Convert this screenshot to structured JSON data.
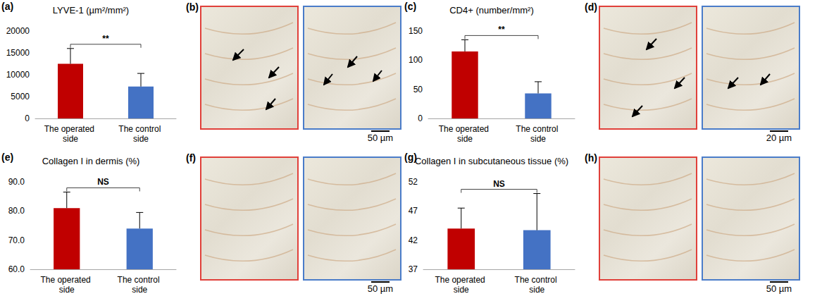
{
  "chart_data": [
    {
      "panel": "(a)",
      "type": "bar",
      "title": "LYVE-1 (µm²/mm²)",
      "categories": [
        "The operated side",
        "The control side"
      ],
      "values": [
        12500,
        7300
      ],
      "errors": [
        3500,
        3000
      ],
      "colors": [
        "#c00000",
        "#4472c4"
      ],
      "ylim": [
        0,
        20000
      ],
      "yticks": [
        0,
        5000,
        10000,
        15000,
        20000
      ],
      "grid": false,
      "annotation": "**"
    },
    {
      "panel": "(c)",
      "type": "bar",
      "title": "CD4+ (number/mm²)",
      "categories": [
        "The operated side",
        "The control side"
      ],
      "values": [
        115,
        43
      ],
      "errors": [
        20,
        20
      ],
      "colors": [
        "#c00000",
        "#4472c4"
      ],
      "ylim": [
        0,
        150
      ],
      "yticks": [
        0,
        50,
        100,
        150
      ],
      "grid": false,
      "annotation": "**"
    },
    {
      "panel": "(e)",
      "type": "bar",
      "title": "Collagen I in dermis (%)",
      "categories": [
        "The operated side",
        "The control side"
      ],
      "values": [
        81,
        74
      ],
      "errors": [
        5.5,
        5.5
      ],
      "colors": [
        "#c00000",
        "#4472c4"
      ],
      "ylim": [
        60,
        90
      ],
      "yticks": [
        {
          "value": 60,
          "label": "60.0"
        },
        {
          "value": 70,
          "label": "70.0"
        },
        {
          "value": 80,
          "label": "80.0"
        },
        {
          "value": 90,
          "label": "90.0"
        }
      ],
      "grid": false,
      "annotation": "NS"
    },
    {
      "panel": "(g)",
      "type": "bar",
      "title": "Collagen I in subcutaneous tissue (%)",
      "categories": [
        "The operated side",
        "The control side"
      ],
      "values": [
        44,
        43.7
      ],
      "errors": [
        3.5,
        6.3
      ],
      "colors": [
        "#c00000",
        "#4472c4"
      ],
      "ylim": [
        37,
        52
      ],
      "yticks": [
        37,
        42,
        47,
        52
      ],
      "grid": false,
      "annotation": "NS"
    }
  ],
  "image_panels": [
    {
      "panel": "(b)",
      "scale_bar": "50 µm",
      "frame_colors": [
        "#e0403a",
        "#4a7cc9"
      ]
    },
    {
      "panel": "(d)",
      "scale_bar": "20 µm",
      "frame_colors": [
        "#e0403a",
        "#4a7cc9"
      ]
    },
    {
      "panel": "(f)",
      "scale_bar": "50 µm",
      "frame_colors": [
        "#e0403a",
        "#4a7cc9"
      ]
    },
    {
      "panel": "(h)",
      "scale_bar": "50 µm",
      "frame_colors": [
        "#e0403a",
        "#4a7cc9"
      ]
    }
  ]
}
